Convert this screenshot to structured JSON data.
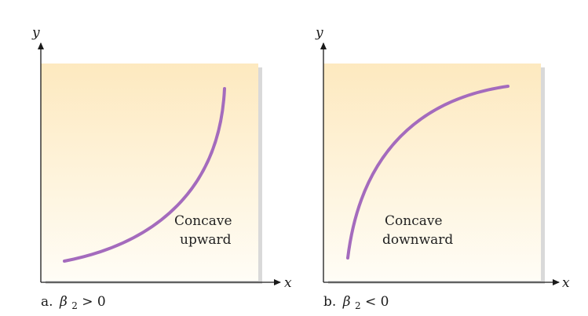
{
  "colors": {
    "curve": "#a46bbd",
    "axis": "#1a1a1a",
    "panel_top": "#fde9bf",
    "panel_bottom": "#fffdf6",
    "panel_shadow": "#d9d9d9"
  },
  "panels": [
    {
      "axis_y_label": "y",
      "axis_x_label": "x",
      "curve_label_line1": "Concave",
      "curve_label_line2": "upward",
      "caption_prefix": "a.",
      "caption_symbol": "β",
      "caption_subscript": "2",
      "caption_relation": " > 0"
    },
    {
      "axis_y_label": "y",
      "axis_x_label": "x",
      "curve_label_line1": "Concave",
      "curve_label_line2": "downward",
      "caption_prefix": "b.",
      "caption_symbol": "β",
      "caption_subscript": "2",
      "caption_relation": " < 0"
    }
  ]
}
